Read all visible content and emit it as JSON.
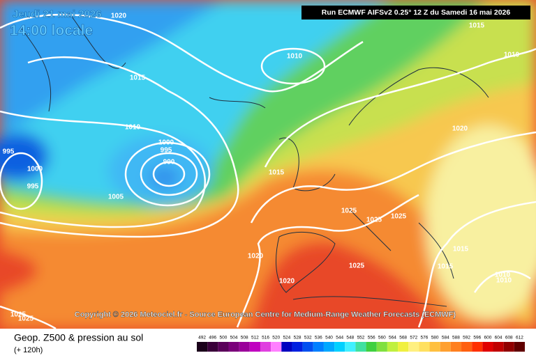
{
  "header": {
    "date": "Jeudi 21 mai 2026",
    "time": "14:00 locale",
    "run": "Run ECMWF AIFSv2 0.25° 12 Z du Samedi 16 mai 2026"
  },
  "isobar_labels": [
    "1020",
    "1015",
    "1010",
    "1010",
    "1015",
    "1010",
    "1020",
    "995",
    "1000",
    "995",
    "990",
    "1000",
    "995",
    "1005",
    "1015",
    "1025",
    "1025",
    "1025",
    "1015",
    "1015",
    "1020",
    "1025",
    "1010",
    "1010",
    "1020",
    "1025",
    "1025"
  ],
  "copyright": "Copyright © 2026 Meteociel.fr - Source European Centre for Medium-Range Weather Forecasts (ECMWF)",
  "footer": {
    "title": "Geop. Z500 & pression au sol",
    "lead": "(+ 120h)"
  },
  "scale": {
    "values": [
      492,
      496,
      500,
      504,
      508,
      512,
      516,
      520,
      524,
      528,
      532,
      536,
      540,
      544,
      548,
      552,
      556,
      560,
      564,
      568,
      572,
      576,
      580,
      584,
      588,
      592,
      596,
      600,
      604,
      608,
      612
    ],
    "colors": [
      "#1a001a",
      "#3a003a",
      "#5a005a",
      "#7a007a",
      "#9a009a",
      "#c000c0",
      "#e040e0",
      "#ff80ff",
      "#0000c0",
      "#0020e0",
      "#0050f0",
      "#0080ff",
      "#00a8ff",
      "#00d0ff",
      "#40f0ff",
      "#40e0a0",
      "#40d040",
      "#80e040",
      "#c0f040",
      "#f0f040",
      "#fff080",
      "#ffe060",
      "#ffc040",
      "#ffa030",
      "#ff8020",
      "#ff6010",
      "#ff3000",
      "#e00000",
      "#c00000",
      "#900000",
      "#600000"
    ]
  }
}
